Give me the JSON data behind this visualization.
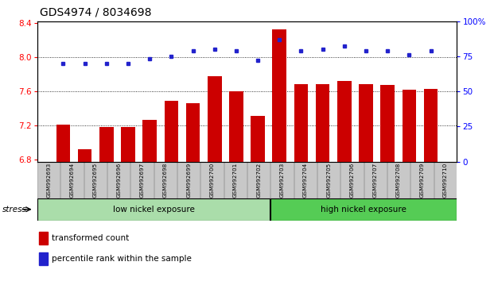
{
  "title": "GDS4974 / 8034698",
  "samples": [
    "GSM992693",
    "GSM992694",
    "GSM992695",
    "GSM992696",
    "GSM992697",
    "GSM992698",
    "GSM992699",
    "GSM992700",
    "GSM992701",
    "GSM992702",
    "GSM992703",
    "GSM992704",
    "GSM992705",
    "GSM992706",
    "GSM992707",
    "GSM992708",
    "GSM992709",
    "GSM992710"
  ],
  "bar_values": [
    7.21,
    6.92,
    7.18,
    7.18,
    7.27,
    7.49,
    7.46,
    7.78,
    7.6,
    7.31,
    8.32,
    7.68,
    7.68,
    7.72,
    7.68,
    7.67,
    7.62,
    7.63
  ],
  "percentile_values": [
    70,
    70,
    70,
    70,
    73,
    75,
    79,
    80,
    79,
    72,
    87,
    79,
    80,
    82,
    79,
    79,
    76,
    79
  ],
  "ylim_left": [
    6.78,
    8.42
  ],
  "ylim_right": [
    0,
    100
  ],
  "yticks_left": [
    6.8,
    7.2,
    7.6,
    8.0,
    8.4
  ],
  "yticks_right": [
    0,
    25,
    50,
    75,
    100
  ],
  "bar_color": "#cc0000",
  "dot_color": "#2222cc",
  "group1_label": "low nickel exposure",
  "group2_label": "high nickel exposure",
  "group1_count": 10,
  "group2_count": 8,
  "group1_color": "#aaddaa",
  "group2_color": "#55cc55",
  "stress_label": "stress",
  "legend_bar_label": "transformed count",
  "legend_dot_label": "percentile rank within the sample",
  "bar_baseline": 6.78,
  "xlabel_color": "#c8c8c8",
  "title_fontsize": 10
}
